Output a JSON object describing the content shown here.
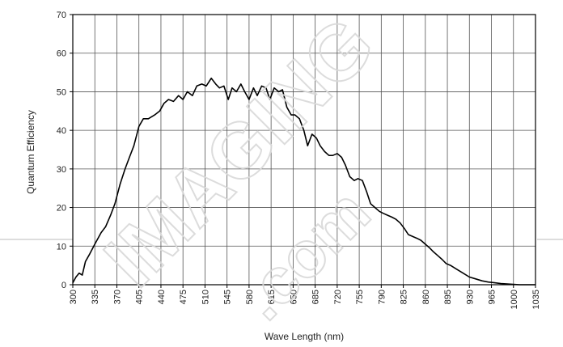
{
  "chart_data": {
    "type": "line",
    "title": "",
    "xlabel": "Wave Length (nm)",
    "ylabel": "Quantum Efficiency",
    "xlim": [
      300,
      1035
    ],
    "ylim": [
      0,
      70
    ],
    "grid": true,
    "legend": "none",
    "x_ticks": [
      "300",
      "335",
      "370",
      "405",
      "440",
      "475",
      "510",
      "545",
      "580",
      "615",
      "650",
      "685",
      "720",
      "755",
      "790",
      "825",
      "860",
      "895",
      "930",
      "965",
      "1000",
      "1035"
    ],
    "y_ticks": [
      "0",
      "10",
      "20",
      "30",
      "40",
      "50",
      "60",
      "70"
    ],
    "series": [
      {
        "color": "#000000",
        "x": [
          300,
          305,
          310,
          315,
          320,
          327,
          335,
          340,
          345,
          352,
          360,
          367,
          375,
          383,
          390,
          397,
          405,
          412,
          420,
          430,
          438,
          445,
          452,
          460,
          468,
          475,
          482,
          490,
          497,
          505,
          512,
          520,
          527,
          533,
          540,
          547,
          553,
          560,
          567,
          573,
          580,
          587,
          593,
          600,
          607,
          613,
          620,
          627,
          633,
          640,
          647,
          653,
          660,
          667,
          673,
          680,
          687,
          693,
          700,
          707,
          713,
          720,
          727,
          733,
          740,
          747,
          753,
          760,
          767,
          773,
          780,
          787,
          793,
          800,
          807,
          813,
          820,
          827,
          833,
          840,
          847,
          853,
          860,
          867,
          873,
          880,
          887,
          893,
          900,
          910,
          920,
          930,
          940,
          950,
          960,
          970,
          980,
          990,
          1000,
          1010,
          1020,
          1035
        ],
        "y": [
          0.5,
          2,
          3,
          2.5,
          6,
          8,
          10.5,
          12,
          13.5,
          15,
          18,
          21,
          26,
          30,
          33,
          36,
          41,
          43,
          43,
          44,
          45,
          47,
          48,
          47.5,
          49,
          48,
          50,
          49,
          51.5,
          52,
          51.5,
          53.5,
          52,
          51,
          51.5,
          48,
          51,
          50,
          52,
          50,
          48,
          51,
          49,
          51.5,
          51,
          48,
          51,
          50,
          50.5,
          46,
          44,
          44,
          43,
          40,
          36,
          39,
          38,
          36,
          34.5,
          33.5,
          33.5,
          34,
          33,
          31,
          28,
          27,
          27.5,
          27,
          24,
          21,
          20,
          19,
          18.5,
          18,
          17.5,
          17,
          16,
          14.5,
          13,
          12.5,
          12,
          11.5,
          10.5,
          9.5,
          8.5,
          7.5,
          6.5,
          5.5,
          5,
          4,
          3,
          2,
          1.5,
          1,
          0.7,
          0.5,
          0.3,
          0.2,
          0.1,
          0,
          0,
          0
        ]
      }
    ]
  },
  "watermark": {
    "text_1": "IMAGING",
    "text_2": ".com"
  }
}
